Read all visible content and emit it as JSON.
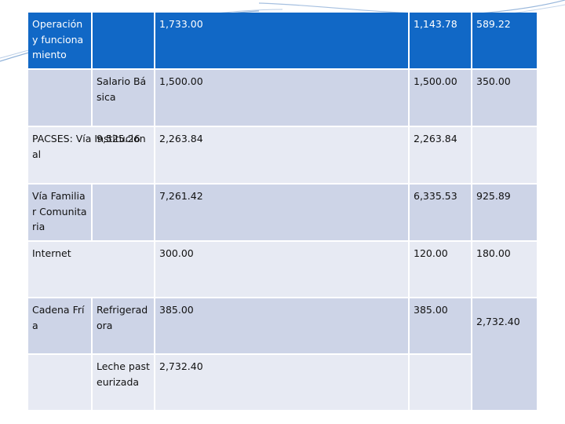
{
  "rows": [
    {
      "c0": "Operación y funcionamiento",
      "c1": "",
      "c2": "1,733.00",
      "c3": "",
      "c4": "1,143.78",
      "c5": "589.22"
    },
    {
      "c0": "",
      "c1": "Salario Básica",
      "c2": "1,500.00",
      "c3": "",
      "c4": "1,500.00",
      "c5": "350.00"
    },
    {
      "c0": "PACSES: Vía Institucional",
      "c1": "9,525.26",
      "c2": "2,263.84",
      "c3": "",
      "c4": "2,263.84",
      "c5": ""
    },
    {
      "c0": "Vía Familiar Comunitaria",
      "c1": "",
      "c2": "7,261.42",
      "c3": "",
      "c4": "6,335.53",
      "c5": "925.89"
    },
    {
      "c0": "Internet",
      "c1": "",
      "c2": "300.00",
      "c3": "",
      "c4": "120.00",
      "c5": "180.00"
    },
    {
      "c0": "Cadena Fría",
      "c1": "Refrigeradora",
      "c2": "385.00",
      "c3": "",
      "c4": "385.00",
      "c5": "2,732.40"
    },
    {
      "c0": "",
      "c1": "Leche pasteurizada",
      "c2": "2,732.40",
      "c3": "",
      "c4": "",
      "c5": ""
    }
  ],
  "theme": {
    "header_color": "#1168c6",
    "band_dark": "#cdd4e7",
    "band_light": "#e7eaf3"
  }
}
